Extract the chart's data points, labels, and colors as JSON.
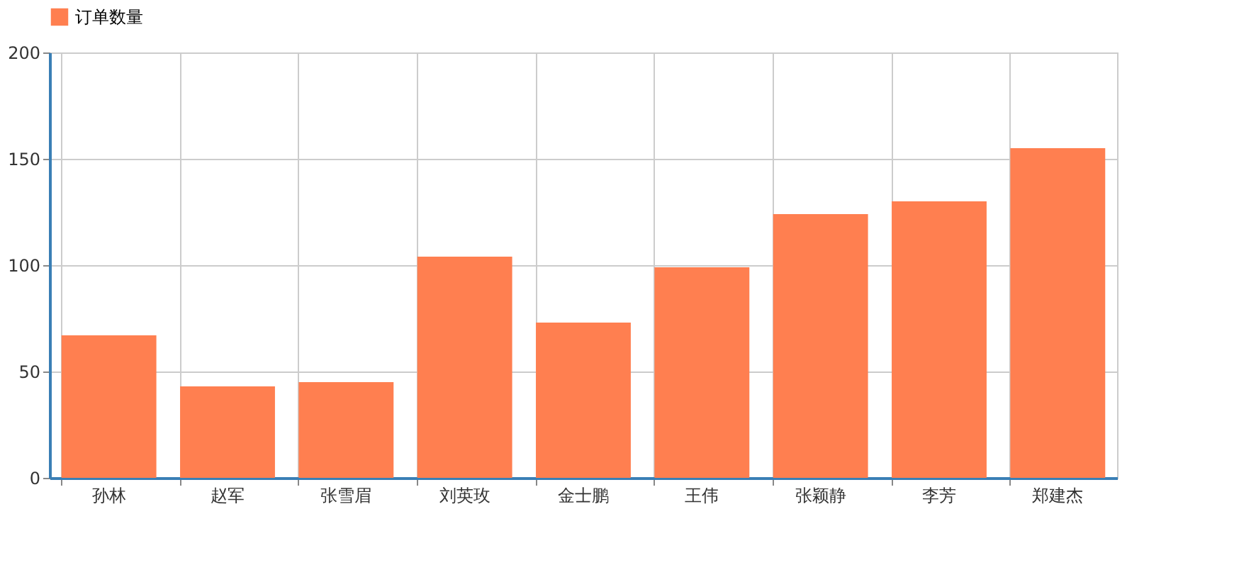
{
  "chart_data": {
    "type": "bar",
    "categories": [
      "孙林",
      "赵军",
      "张雪眉",
      "刘英玫",
      "金士鹏",
      "王伟",
      "张颖静",
      "李芳",
      "郑建杰"
    ],
    "series": [
      {
        "name": "订单数量",
        "color": "#ff7f50",
        "values": [
          67,
          43,
          45,
          104,
          73,
          99,
          124,
          130,
          155
        ]
      }
    ],
    "ylim": [
      0,
      200
    ],
    "yticks": [
      0,
      50,
      100,
      150,
      200
    ],
    "grid": true,
    "legend": "top"
  }
}
